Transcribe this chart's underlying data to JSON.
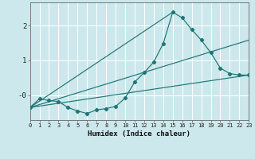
{
  "xlabel": "Humidex (Indice chaleur)",
  "background_color": "#cce8ec",
  "grid_color": "#ffffff",
  "line_color": "#1e7575",
  "xlim": [
    0,
    23
  ],
  "ylim": [
    -0.7,
    2.65
  ],
  "ytick_positions": [
    0.0,
    1.0,
    2.0
  ],
  "ytick_labels": [
    "-0",
    "1",
    "2"
  ],
  "xticks": [
    0,
    1,
    2,
    3,
    4,
    5,
    6,
    7,
    8,
    9,
    10,
    11,
    12,
    13,
    14,
    15,
    16,
    17,
    18,
    19,
    20,
    21,
    22,
    23
  ],
  "curve_x": [
    0,
    1,
    2,
    3,
    4,
    5,
    6,
    7,
    8,
    9,
    10,
    11,
    12,
    13,
    14,
    15,
    16,
    17,
    18,
    19,
    20,
    21,
    22,
    23
  ],
  "curve_y": [
    -0.35,
    -0.1,
    -0.15,
    -0.18,
    -0.35,
    -0.45,
    -0.52,
    -0.42,
    -0.38,
    -0.32,
    -0.08,
    0.38,
    0.65,
    0.95,
    1.48,
    2.38,
    2.22,
    1.88,
    1.58,
    1.22,
    0.78,
    0.62,
    0.58,
    0.58
  ],
  "fan_origin_x": 0,
  "fan_origin_y": -0.35,
  "fan_lines": [
    {
      "end_x": 23,
      "end_y": 0.58
    },
    {
      "end_x": 23,
      "end_y": 1.58
    },
    {
      "end_x": 15,
      "end_y": 2.38
    }
  ]
}
